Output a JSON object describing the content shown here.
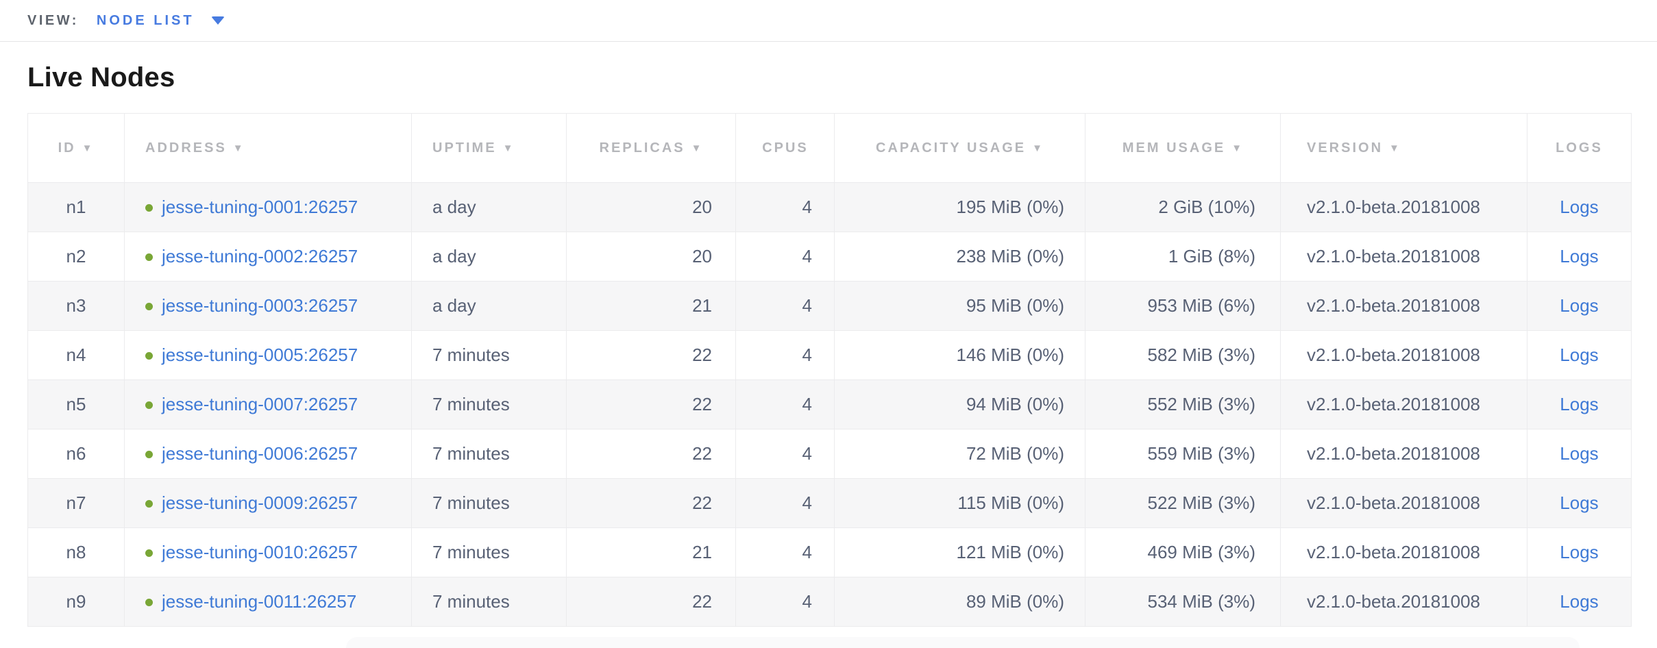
{
  "view_bar": {
    "label": "VIEW:",
    "selected": "NODE LIST"
  },
  "page": {
    "title": "Live Nodes"
  },
  "icons": {
    "sort_desc": "▼",
    "dropdown": "▼",
    "node_status": "green-dot"
  },
  "colors": {
    "accent_blue": "#477be0",
    "link_blue": "#3f7ad6",
    "healthy_green": "#79a636",
    "header_gray": "#b5b6ba",
    "cell_text": "#586175",
    "row_stripe": "#f6f6f7"
  },
  "table": {
    "logs_label": "Logs",
    "columns": [
      {
        "key": "id",
        "label": "ID",
        "sortable": true
      },
      {
        "key": "address",
        "label": "ADDRESS",
        "sortable": true
      },
      {
        "key": "uptime",
        "label": "UPTIME",
        "sortable": true
      },
      {
        "key": "replicas",
        "label": "REPLICAS",
        "sortable": true
      },
      {
        "key": "cpus",
        "label": "CPUS",
        "sortable": false
      },
      {
        "key": "capacity",
        "label": "CAPACITY USAGE",
        "sortable": true
      },
      {
        "key": "mem",
        "label": "MEM USAGE",
        "sortable": true
      },
      {
        "key": "version",
        "label": "VERSION",
        "sortable": true
      },
      {
        "key": "logs",
        "label": "LOGS",
        "sortable": false
      }
    ],
    "rows": [
      {
        "id": "n1",
        "address": "jesse-tuning-0001:26257",
        "uptime": "a day",
        "replicas": "20",
        "cpus": "4",
        "capacity": "195 MiB (0%)",
        "mem": "2 GiB (10%)",
        "version": "v2.1.0-beta.20181008"
      },
      {
        "id": "n2",
        "address": "jesse-tuning-0002:26257",
        "uptime": "a day",
        "replicas": "20",
        "cpus": "4",
        "capacity": "238 MiB (0%)",
        "mem": "1 GiB (8%)",
        "version": "v2.1.0-beta.20181008"
      },
      {
        "id": "n3",
        "address": "jesse-tuning-0003:26257",
        "uptime": "a day",
        "replicas": "21",
        "cpus": "4",
        "capacity": "95 MiB (0%)",
        "mem": "953 MiB (6%)",
        "version": "v2.1.0-beta.20181008"
      },
      {
        "id": "n4",
        "address": "jesse-tuning-0005:26257",
        "uptime": "7 minutes",
        "replicas": "22",
        "cpus": "4",
        "capacity": "146 MiB (0%)",
        "mem": "582 MiB (3%)",
        "version": "v2.1.0-beta.20181008"
      },
      {
        "id": "n5",
        "address": "jesse-tuning-0007:26257",
        "uptime": "7 minutes",
        "replicas": "22",
        "cpus": "4",
        "capacity": "94 MiB (0%)",
        "mem": "552 MiB (3%)",
        "version": "v2.1.0-beta.20181008"
      },
      {
        "id": "n6",
        "address": "jesse-tuning-0006:26257",
        "uptime": "7 minutes",
        "replicas": "22",
        "cpus": "4",
        "capacity": "72 MiB (0%)",
        "mem": "559 MiB (3%)",
        "version": "v2.1.0-beta.20181008"
      },
      {
        "id": "n7",
        "address": "jesse-tuning-0009:26257",
        "uptime": "7 minutes",
        "replicas": "22",
        "cpus": "4",
        "capacity": "115 MiB (0%)",
        "mem": "522 MiB (3%)",
        "version": "v2.1.0-beta.20181008"
      },
      {
        "id": "n8",
        "address": "jesse-tuning-0010:26257",
        "uptime": "7 minutes",
        "replicas": "21",
        "cpus": "4",
        "capacity": "121 MiB (0%)",
        "mem": "469 MiB (3%)",
        "version": "v2.1.0-beta.20181008"
      },
      {
        "id": "n9",
        "address": "jesse-tuning-0011:26257",
        "uptime": "7 minutes",
        "replicas": "22",
        "cpus": "4",
        "capacity": "89 MiB (0%)",
        "mem": "534 MiB (3%)",
        "version": "v2.1.0-beta.20181008"
      }
    ]
  }
}
